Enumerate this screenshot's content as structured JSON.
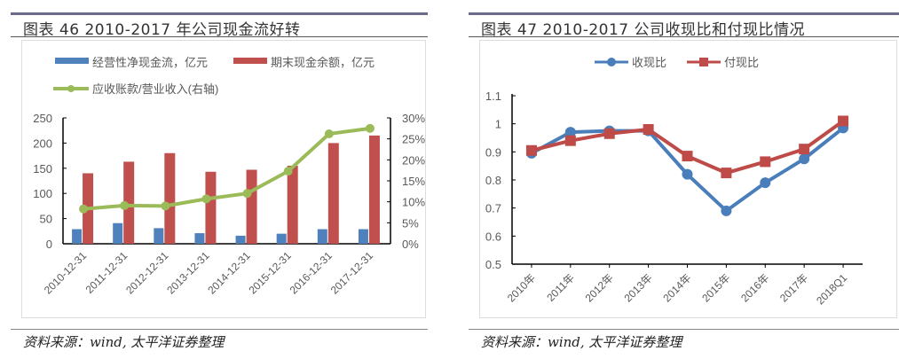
{
  "chart_data": [
    {
      "type": "bar",
      "title": "图表 46 2010-2017 年公司现金流好转",
      "categories": [
        "2010-12-31",
        "2011-12-31",
        "2012-12-31",
        "2013-12-31",
        "2014-12-31",
        "2015-12-31",
        "2016-12-31",
        "2017-12-31"
      ],
      "series": [
        {
          "name": "经营性净现金流，亿元",
          "type": "bar",
          "axis": "left",
          "color": "#4f81bd",
          "values": [
            29,
            41,
            31,
            21,
            16,
            20,
            29,
            29
          ]
        },
        {
          "name": "期末现金余额，亿元",
          "type": "bar",
          "axis": "left",
          "color": "#c0504d",
          "values": [
            140,
            163,
            180,
            143,
            147,
            155,
            200,
            215
          ]
        },
        {
          "name": "应收账款/营业收入(右轴)",
          "type": "line",
          "axis": "right",
          "color": "#9bbb59",
          "values": [
            8.3,
            9.1,
            9.0,
            10.7,
            12.0,
            17.3,
            26.2,
            27.5
          ]
        }
      ],
      "ylim": [
        0,
        250
      ],
      "yticks": [
        "0",
        "50",
        "100",
        "150",
        "200",
        "250"
      ],
      "y2lim": [
        0,
        30
      ],
      "y2ticks": [
        "0%",
        "5%",
        "10%",
        "15%",
        "20%",
        "25%",
        "30%"
      ],
      "legend": "top",
      "source": "资料来源：wind, 太平洋证券整理"
    },
    {
      "type": "line",
      "title": "图表 47 2010-2017 公司收现比和付现比情况",
      "categories": [
        "2010年",
        "2011年",
        "2012年",
        "2013年",
        "2014年",
        "2015年",
        "2016年",
        "2017年",
        "2018Q1"
      ],
      "series": [
        {
          "name": "收现比",
          "marker": "circle",
          "color": "#4a7ebb",
          "values": [
            0.895,
            0.97,
            0.975,
            0.975,
            0.82,
            0.69,
            0.79,
            0.875,
            0.985
          ]
        },
        {
          "name": "付现比",
          "marker": "square",
          "color": "#be4b48",
          "values": [
            0.905,
            0.94,
            0.965,
            0.98,
            0.885,
            0.825,
            0.865,
            0.91,
            1.01
          ]
        }
      ],
      "ylim": [
        0.5,
        1.1
      ],
      "yticks": [
        "0.5",
        "0.6",
        "0.7",
        "0.8",
        "0.9",
        "1",
        "1.1"
      ],
      "legend": "top",
      "source": "资料来源：wind, 太平洋证券整理"
    }
  ]
}
